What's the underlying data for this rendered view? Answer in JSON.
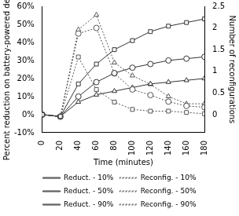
{
  "chart_data": {
    "type": "line",
    "x_label": "Time (minutes)",
    "y_label": "Percent reduction on battery-powered devices",
    "y2_label": "Number of reconfigurations",
    "x": [
      0,
      20,
      40,
      60,
      80,
      100,
      120,
      140,
      160,
      180
    ],
    "xlim": [
      0,
      180
    ],
    "xticks": [
      0,
      20,
      40,
      60,
      80,
      100,
      120,
      140,
      160,
      180
    ],
    "ylim": [
      -10,
      60
    ],
    "yticks": [
      {
        "value": -10,
        "label": "-10%"
      },
      {
        "value": 0,
        "label": "0%"
      },
      {
        "value": 10,
        "label": "10%"
      },
      {
        "value": 20,
        "label": "20%"
      },
      {
        "value": 30,
        "label": "30%"
      },
      {
        "value": 40,
        "label": "40%"
      },
      {
        "value": 50,
        "label": "50%"
      },
      {
        "value": 60,
        "label": "60%"
      }
    ],
    "y2lim": [
      -0.4167,
      2.5
    ],
    "y2ticks": [
      0,
      0.5,
      1,
      1.5,
      2,
      2.5
    ],
    "grid": false,
    "legend": "bottom",
    "series": [
      {
        "name": "Reduct. - 10%",
        "color": "#333333",
        "marker": "square",
        "line_style": "solid",
        "values": [
          0,
          -1,
          17,
          28,
          36,
          41,
          46,
          49,
          51,
          53
        ]
      },
      {
        "name": "Reconfig. - 10%",
        "color": "#555555",
        "marker": "square",
        "line_style": "dotted",
        "axis": "y2",
        "values": [
          0,
          -0.05,
          1.33,
          0.58,
          0.29,
          0.12,
          0.08,
          0.08,
          0.05,
          0.02
        ]
      },
      {
        "name": "Reduct. - 50%",
        "color": "#333333",
        "marker": "circle",
        "line_style": "solid",
        "values": [
          0,
          -1,
          10,
          18,
          23,
          26,
          28,
          30,
          31,
          32
        ]
      },
      {
        "name": "Reconfig. - 50%",
        "color": "#555555",
        "marker": "circle",
        "line_style": "dotted",
        "axis": "y2",
        "values": [
          0,
          -0.05,
          1.87,
          2.0,
          0.95,
          0.58,
          0.45,
          0.3,
          0.2,
          0.17
        ]
      },
      {
        "name": "Reduct. - 90%",
        "color": "#333333",
        "marker": "triangle",
        "line_style": "solid",
        "values": [
          0,
          -1,
          7,
          11,
          13,
          15,
          17,
          18,
          19,
          20
        ]
      },
      {
        "name": "Reconfig. - 90%",
        "color": "#555555",
        "marker": "triangle",
        "line_style": "dotted",
        "axis": "y2",
        "values": [
          0,
          -0.05,
          1.96,
          2.3,
          1.2,
          0.9,
          0.7,
          0.42,
          0.25,
          0.25
        ]
      }
    ]
  }
}
